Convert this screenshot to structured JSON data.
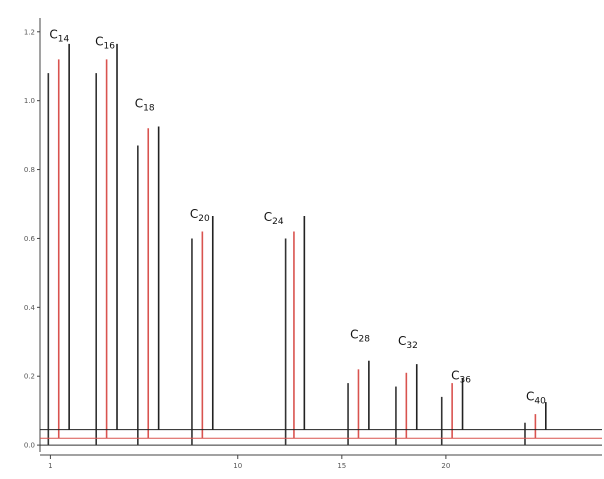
{
  "chart_data": {
    "type": "line",
    "title": "",
    "xlabel": "",
    "ylabel": "",
    "xlim": [
      0.5,
      27.5
    ],
    "ylim": [
      -0.02,
      1.24
    ],
    "x_ticks": [
      {
        "value": 1,
        "label": "1"
      },
      {
        "value": 10,
        "label": "10"
      },
      {
        "value": 15,
        "label": "15"
      },
      {
        "value": 20,
        "label": "20"
      }
    ],
    "y_ticks": [
      {
        "value": 0.0,
        "label": "0.0"
      },
      {
        "value": 0.2,
        "label": "0.2"
      },
      {
        "value": 0.4,
        "label": "0.4"
      },
      {
        "value": 0.6,
        "label": "0.6"
      },
      {
        "value": 0.8,
        "label": "0.8"
      },
      {
        "value": 1.0,
        "label": "1.0"
      },
      {
        "value": 1.2,
        "label": "1.2"
      }
    ],
    "series": [
      {
        "color": "#333333",
        "baseline": 0.0,
        "peaks": [
          {
            "x": 0.9,
            "height": 1.08
          },
          {
            "x": 3.2,
            "height": 1.08
          },
          {
            "x": 5.2,
            "height": 0.87
          },
          {
            "x": 7.8,
            "height": 0.6
          },
          {
            "x": 12.3,
            "height": 0.6
          },
          {
            "x": 15.3,
            "height": 0.18
          },
          {
            "x": 17.6,
            "height": 0.17
          },
          {
            "x": 19.8,
            "height": 0.14
          },
          {
            "x": 23.8,
            "height": 0.065
          }
        ]
      },
      {
        "color": "#d9534f",
        "baseline": 0.02,
        "peaks": [
          {
            "x": 1.4,
            "height": 1.1
          },
          {
            "x": 3.7,
            "height": 1.1
          },
          {
            "x": 5.7,
            "height": 0.9
          },
          {
            "x": 8.3,
            "height": 0.6
          },
          {
            "x": 12.7,
            "height": 0.6
          },
          {
            "x": 15.8,
            "height": 0.2
          },
          {
            "x": 18.1,
            "height": 0.19
          },
          {
            "x": 20.3,
            "height": 0.16
          },
          {
            "x": 24.3,
            "height": 0.07
          }
        ]
      },
      {
        "color": "#222222",
        "baseline": 0.045,
        "peaks": [
          {
            "x": 1.9,
            "height": 1.12
          },
          {
            "x": 4.2,
            "height": 1.12
          },
          {
            "x": 6.2,
            "height": 0.88
          },
          {
            "x": 8.8,
            "height": 0.62
          },
          {
            "x": 13.2,
            "height": 0.62
          },
          {
            "x": 16.3,
            "height": 0.2
          },
          {
            "x": 18.6,
            "height": 0.19
          },
          {
            "x": 20.8,
            "height": 0.15
          },
          {
            "x": 24.8,
            "height": 0.08
          }
        ]
      }
    ],
    "annotations": [
      {
        "text_main": "C",
        "text_sub": "14",
        "x": 0.95,
        "y": 1.18
      },
      {
        "text_main": "C",
        "text_sub": "16",
        "x": 3.15,
        "y": 1.16
      },
      {
        "text_main": "C",
        "text_sub": "18",
        "x": 5.05,
        "y": 0.98
      },
      {
        "text_main": "C",
        "text_sub": "20",
        "x": 7.7,
        "y": 0.66
      },
      {
        "text_main": "C",
        "text_sub": "24",
        "x": 11.25,
        "y": 0.65
      },
      {
        "text_main": "C",
        "text_sub": "28",
        "x": 15.4,
        "y": 0.31
      },
      {
        "text_main": "C",
        "text_sub": "32",
        "x": 17.7,
        "y": 0.29
      },
      {
        "text_main": "C",
        "text_sub": "36",
        "x": 20.25,
        "y": 0.19
      },
      {
        "text_main": "C",
        "text_sub": "40",
        "x": 23.85,
        "y": 0.13
      }
    ]
  }
}
